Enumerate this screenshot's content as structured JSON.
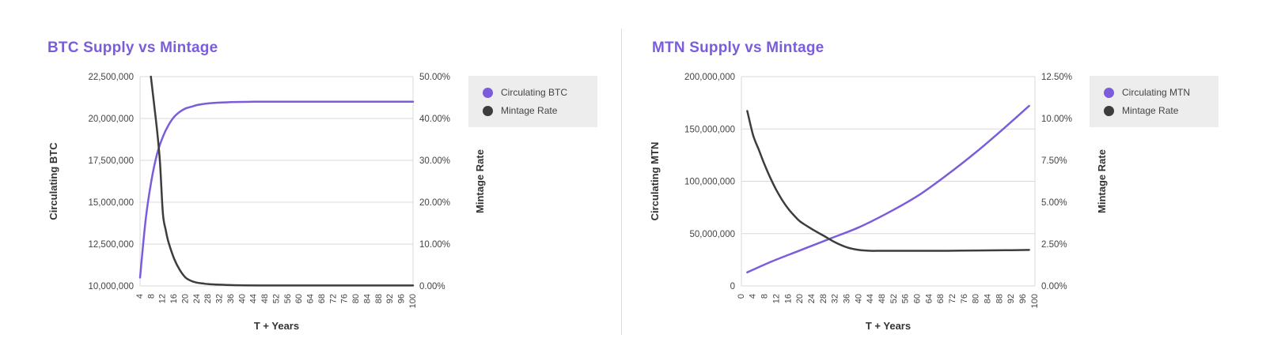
{
  "chart_data": [
    {
      "type": "line",
      "title": "BTC Supply vs Mintage",
      "xlabel": "T + Years",
      "ylabel": "Circulating BTC",
      "y2label": "Mintage Rate",
      "xticks": [
        4,
        8,
        12,
        16,
        20,
        24,
        28,
        32,
        36,
        40,
        44,
        48,
        52,
        56,
        60,
        64,
        68,
        72,
        76,
        80,
        84,
        88,
        92,
        96,
        100
      ],
      "xlim": [
        4,
        100
      ],
      "ylim": [
        10000000,
        22500000
      ],
      "yticks": [
        10000000,
        12500000,
        15000000,
        17500000,
        20000000,
        22500000
      ],
      "ytick_labels": [
        "10,000,000",
        "12,500,000",
        "15,000,000",
        "17,500,000",
        "20,000,000",
        "22,500,000"
      ],
      "y2lim": [
        0,
        50
      ],
      "y2ticks": [
        0,
        10,
        20,
        30,
        40,
        50
      ],
      "y2tick_labels": [
        "0.00%",
        "10.00%",
        "20.00%",
        "30.00%",
        "40.00%",
        "50.00%"
      ],
      "grid": true,
      "legend_position": "right",
      "series": [
        {
          "name": "Circulating BTC",
          "axis": "left",
          "color": "#7b5ddc",
          "x": [
            4,
            6,
            8,
            10,
            12,
            14,
            16,
            18,
            20,
            22,
            24,
            26,
            28,
            32,
            36,
            40,
            44,
            52,
            60,
            70,
            80,
            90,
            100
          ],
          "y": [
            10500000,
            14000000,
            16300000,
            17900000,
            18900000,
            19600000,
            20100000,
            20400000,
            20600000,
            20700000,
            20800000,
            20860000,
            20900000,
            20950000,
            20980000,
            20990000,
            21000000,
            21000000,
            21000000,
            21000000,
            21000000,
            21000000,
            21000000
          ]
        },
        {
          "name": "Mintage Rate",
          "axis": "right",
          "color": "#3d3d3f",
          "x": [
            7.8,
            9,
            10,
            11,
            12,
            13,
            14,
            16,
            18,
            20,
            22,
            24,
            26,
            28,
            32,
            36,
            40,
            50,
            60,
            70,
            80,
            90,
            100
          ],
          "y": [
            50,
            43,
            37,
            29.5,
            17.5,
            13.5,
            10.5,
            6.5,
            3.8,
            2.0,
            1.2,
            0.8,
            0.6,
            0.45,
            0.3,
            0.2,
            0.15,
            0.12,
            0.12,
            0.12,
            0.12,
            0.12,
            0.12
          ]
        }
      ]
    },
    {
      "type": "line",
      "title": "MTN Supply vs Mintage",
      "xlabel": "T + Years",
      "ylabel": "Circulating MTN",
      "y2label": "Mintage Rate",
      "xticks": [
        0,
        4,
        8,
        12,
        16,
        20,
        24,
        28,
        32,
        36,
        40,
        44,
        48,
        52,
        56,
        60,
        64,
        68,
        72,
        76,
        80,
        84,
        88,
        92,
        96,
        100
      ],
      "xlim": [
        0,
        100
      ],
      "ylim": [
        0,
        200000000
      ],
      "yticks": [
        0,
        50000000,
        100000000,
        150000000,
        200000000
      ],
      "ytick_labels": [
        "0",
        "50,000,000",
        "100,000,000",
        "150,000,000",
        "200,000,000"
      ],
      "y2lim": [
        0,
        12.5
      ],
      "y2ticks": [
        0,
        2.5,
        5,
        7.5,
        10,
        12.5
      ],
      "y2tick_labels": [
        "0.00%",
        "2.50%",
        "5.00%",
        "7.50%",
        "10.00%",
        "12.50%"
      ],
      "grid": true,
      "legend_position": "right",
      "series": [
        {
          "name": "Circulating MTN",
          "axis": "left",
          "color": "#7b5ddc",
          "x": [
            2,
            10,
            20,
            30,
            40,
            50,
            60,
            70,
            80,
            90,
            98
          ],
          "y": [
            13000000,
            23000000,
            34000000,
            45000000,
            56000000,
            70000000,
            86000000,
            106000000,
            128000000,
            152000000,
            172000000
          ]
        },
        {
          "name": "Mintage Rate",
          "axis": "right",
          "color": "#3d3d3f",
          "x": [
            2,
            4,
            6,
            8,
            10,
            12,
            14,
            16,
            18,
            20,
            24,
            28,
            32,
            36,
            40,
            44,
            48,
            60,
            70,
            80,
            90,
            98
          ],
          "y": [
            10.45,
            9.0,
            8.1,
            7.2,
            6.4,
            5.7,
            5.1,
            4.6,
            4.2,
            3.85,
            3.4,
            3.0,
            2.6,
            2.3,
            2.15,
            2.1,
            2.1,
            2.1,
            2.1,
            2.12,
            2.13,
            2.15
          ]
        }
      ]
    }
  ]
}
